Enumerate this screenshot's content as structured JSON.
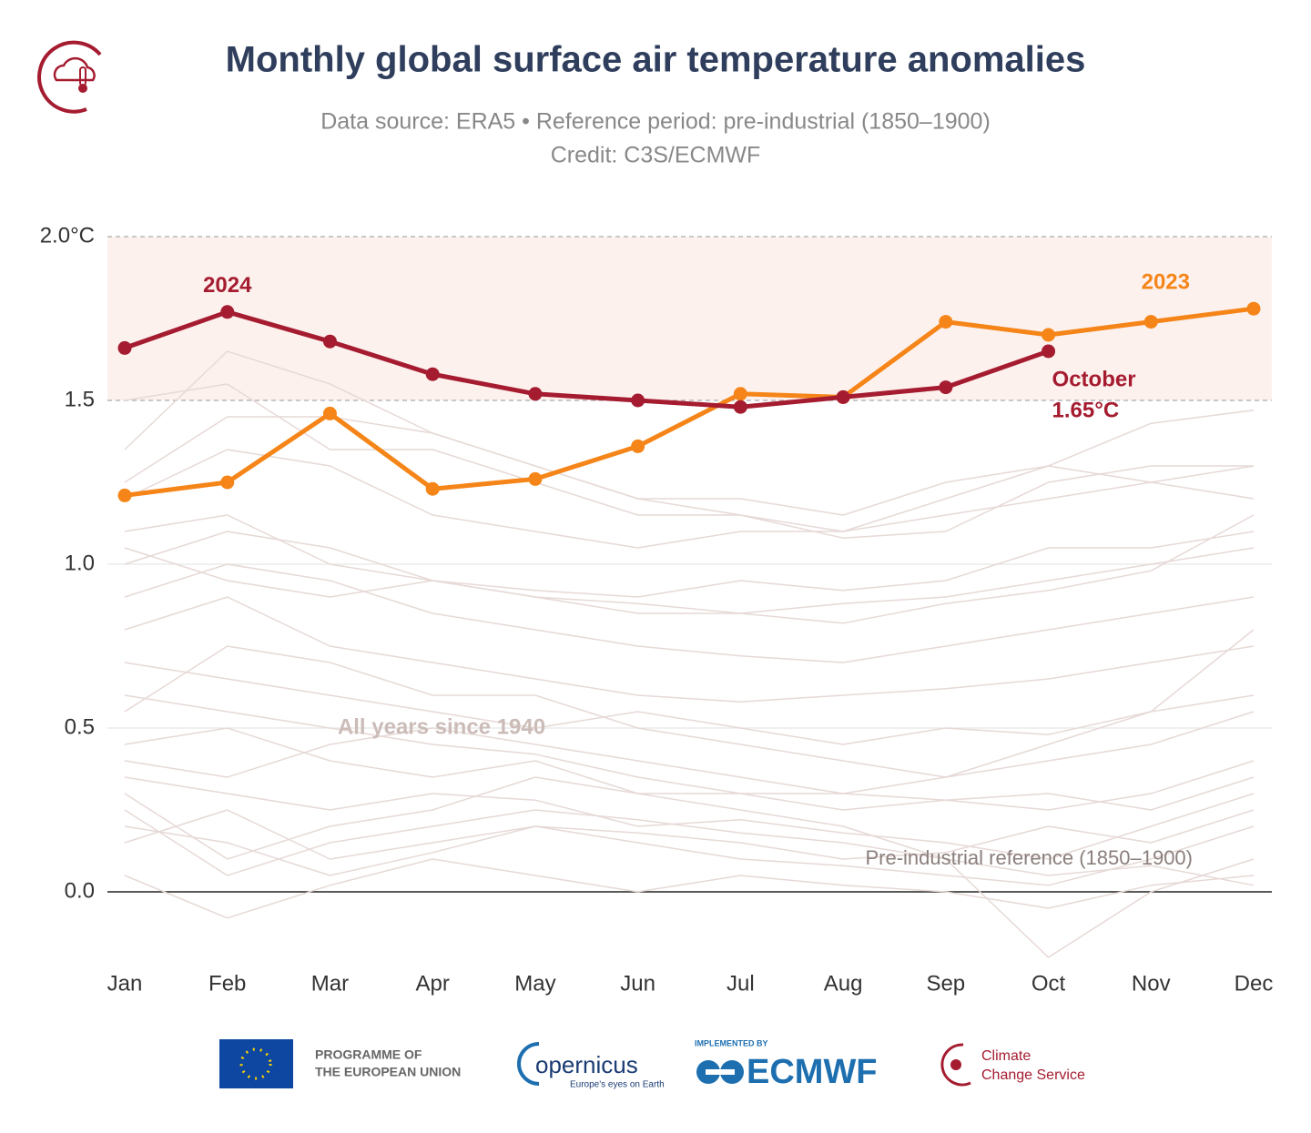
{
  "chart_data": {
    "type": "line",
    "title": "Monthly global surface air temperature anomalies",
    "subtitle": "Data source: ERA5 • Reference period: pre-industrial (1850–1900)",
    "credit": "Credit: C3S/ECMWF",
    "categories": [
      "Jan",
      "Feb",
      "Mar",
      "Apr",
      "May",
      "Jun",
      "Jul",
      "Aug",
      "Sep",
      "Oct",
      "Nov",
      "Dec"
    ],
    "ylim": [
      -0.2,
      2.0
    ],
    "yticks": [
      {
        "value": 0,
        "label": "0.0"
      },
      0.5,
      {
        "value": 1,
        "label": "1.0"
      },
      1.5,
      {
        "value": 2,
        "label": "2.0°C"
      }
    ],
    "grid": true,
    "shaded_band": [
      1.5,
      2.0
    ],
    "background_color": "#e6d9d6",
    "background_series": [
      {
        "values": [
          0.05,
          -0.08,
          0.02,
          0.1,
          0.05,
          0.0,
          0.05,
          0.02,
          0.0,
          -0.05,
          0.02,
          0.05
        ]
      },
      {
        "values": [
          0.2,
          0.15,
          0.05,
          0.12,
          0.2,
          0.15,
          0.1,
          0.08,
          0.05,
          0.02,
          0.1,
          0.2
        ]
      },
      {
        "values": [
          0.35,
          0.3,
          0.25,
          0.3,
          0.28,
          0.2,
          0.22,
          0.18,
          0.15,
          0.1,
          0.2,
          0.3
        ]
      },
      {
        "values": [
          0.45,
          0.5,
          0.4,
          0.35,
          0.4,
          0.3,
          0.3,
          0.25,
          0.28,
          0.3,
          0.25,
          0.35
        ]
      },
      {
        "values": [
          0.3,
          0.1,
          0.2,
          0.25,
          0.35,
          0.3,
          0.25,
          0.2,
          0.1,
          -0.2,
          0.0,
          0.1
        ]
      },
      {
        "values": [
          0.6,
          0.55,
          0.5,
          0.45,
          0.42,
          0.35,
          0.3,
          0.3,
          0.28,
          0.25,
          0.3,
          0.4
        ]
      },
      {
        "values": [
          0.7,
          0.65,
          0.6,
          0.55,
          0.5,
          0.55,
          0.5,
          0.45,
          0.5,
          0.48,
          0.55,
          0.6
        ]
      },
      {
        "values": [
          0.8,
          0.9,
          0.75,
          0.7,
          0.65,
          0.6,
          0.58,
          0.6,
          0.62,
          0.65,
          0.7,
          0.75
        ]
      },
      {
        "values": [
          0.9,
          1.0,
          0.95,
          0.85,
          0.8,
          0.75,
          0.72,
          0.7,
          0.75,
          0.8,
          0.85,
          0.9
        ]
      },
      {
        "values": [
          1.0,
          1.1,
          1.05,
          0.95,
          0.9,
          0.85,
          0.85,
          0.88,
          0.9,
          0.95,
          1.0,
          1.05
        ]
      },
      {
        "values": [
          1.1,
          1.15,
          1.0,
          0.95,
          0.92,
          0.9,
          0.95,
          0.92,
          0.95,
          1.05,
          1.05,
          1.1
        ]
      },
      {
        "values": [
          1.2,
          1.35,
          1.3,
          1.15,
          1.1,
          1.05,
          1.1,
          1.1,
          1.15,
          1.2,
          1.25,
          1.2
        ]
      },
      {
        "values": [
          1.25,
          1.45,
          1.45,
          1.4,
          1.3,
          1.2,
          1.15,
          1.1,
          1.2,
          1.3,
          1.25,
          1.3
        ]
      },
      {
        "values": [
          1.35,
          1.65,
          1.55,
          1.4,
          1.3,
          1.2,
          1.2,
          1.15,
          1.25,
          1.3,
          1.43,
          1.47
        ]
      },
      {
        "values": [
          1.5,
          1.55,
          1.35,
          1.35,
          1.25,
          1.15,
          1.15,
          1.08,
          1.1,
          1.25,
          1.3,
          1.3
        ]
      },
      {
        "values": [
          0.4,
          0.35,
          0.45,
          0.5,
          0.45,
          0.4,
          0.35,
          0.3,
          0.35,
          0.4,
          0.45,
          0.55
        ]
      },
      {
        "values": [
          0.15,
          0.25,
          0.1,
          0.15,
          0.2,
          0.18,
          0.15,
          0.1,
          0.12,
          0.2,
          0.15,
          0.25
        ]
      },
      {
        "values": [
          0.55,
          0.75,
          0.7,
          0.6,
          0.6,
          0.5,
          0.45,
          0.4,
          0.35,
          0.45,
          0.55,
          0.8
        ]
      },
      {
        "values": [
          0.25,
          0.05,
          0.15,
          0.2,
          0.25,
          0.22,
          0.18,
          0.15,
          0.1,
          0.05,
          0.08,
          0.02
        ]
      },
      {
        "values": [
          1.05,
          0.95,
          0.9,
          0.95,
          0.9,
          0.88,
          0.85,
          0.82,
          0.88,
          0.92,
          0.98,
          1.15
        ]
      }
    ],
    "series": [
      {
        "name": "2023",
        "color": "#f58518",
        "values": [
          1.21,
          1.25,
          1.46,
          1.23,
          1.26,
          1.36,
          1.52,
          1.51,
          1.74,
          1.7,
          1.74,
          1.78
        ]
      },
      {
        "name": "2024",
        "color": "#a51c30",
        "values": [
          1.66,
          1.77,
          1.68,
          1.58,
          1.52,
          1.5,
          1.48,
          1.51,
          1.54,
          1.65,
          null,
          null
        ]
      }
    ],
    "annotations": {
      "latest_month": "October",
      "latest_value": "1.65°C",
      "background_label": "All years since 1940",
      "reference_label": "Pre-industrial reference (1850–1900)"
    }
  },
  "footer": {
    "eu_line1": "PROGRAMME OF",
    "eu_line2": "THE EUROPEAN UNION",
    "copernicus": "opernicus",
    "copernicus_tagline": "Europe's eyes on Earth",
    "implemented_by": "IMPLEMENTED BY",
    "ecmwf": "ECMWF",
    "c3s_line1": "Climate",
    "c3s_line2": "Change Service"
  }
}
